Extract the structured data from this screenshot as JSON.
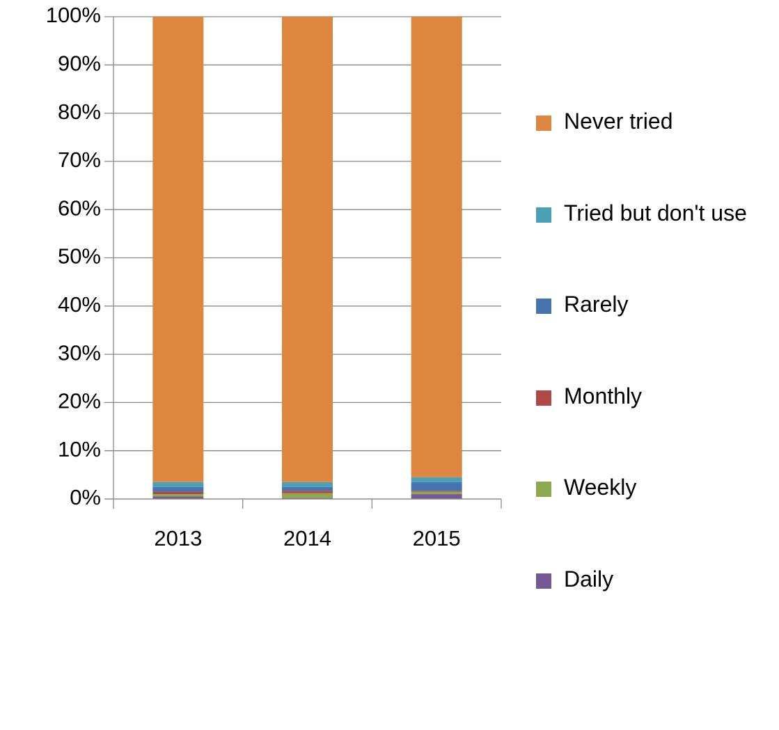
{
  "chart_data": {
    "type": "stacked_bar",
    "categories": [
      "2013",
      "2014",
      "2015"
    ],
    "series": [
      {
        "name": "Daily",
        "color": "#735a96",
        "values": [
          0.5,
          0.2,
          1.0
        ]
      },
      {
        "name": "Weekly",
        "color": "#8ea84f",
        "values": [
          0.5,
          1.0,
          0.5
        ]
      },
      {
        "name": "Monthly",
        "color": "#b04845",
        "values": [
          0.5,
          0.5,
          0.2
        ]
      },
      {
        "name": "Rarely",
        "color": "#4674b0",
        "values": [
          1.0,
          0.8,
          1.8
        ]
      },
      {
        "name": "Tried but don't use",
        "color": "#4aa0b5",
        "values": [
          1.0,
          1.0,
          1.0
        ]
      },
      {
        "name": "Never tried",
        "color": "#dd8640",
        "values": [
          96.5,
          96.5,
          95.5
        ]
      }
    ],
    "ylim": [
      0,
      100
    ],
    "yticks": [
      {
        "value": 0,
        "label": "0%"
      },
      {
        "value": 10,
        "label": "10%"
      },
      {
        "value": 20,
        "label": "20%"
      },
      {
        "value": 30,
        "label": "30%"
      },
      {
        "value": 40,
        "label": "40%"
      },
      {
        "value": 50,
        "label": "50%"
      },
      {
        "value": 60,
        "label": "60%"
      },
      {
        "value": 70,
        "label": "70%"
      },
      {
        "value": 80,
        "label": "80%"
      },
      {
        "value": 90,
        "label": "90%"
      },
      {
        "value": 100,
        "label": "100%"
      }
    ],
    "grid": true,
    "legend": "right"
  }
}
